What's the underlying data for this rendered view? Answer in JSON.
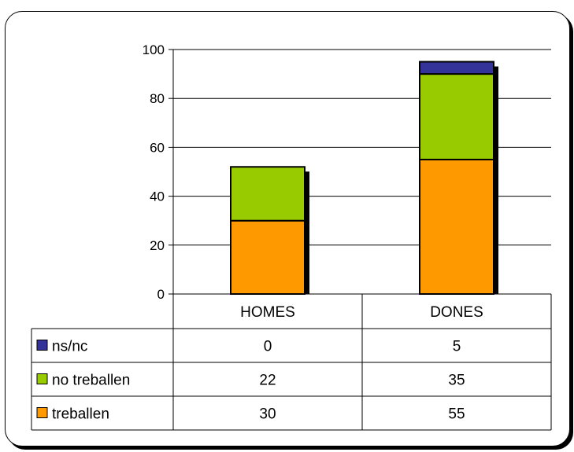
{
  "chart_data": {
    "type": "bar",
    "stacked": true,
    "categories": [
      "HOMES",
      "DONES"
    ],
    "series": [
      {
        "name": "treballen",
        "values": [
          30,
          55
        ],
        "color": "#ff9900"
      },
      {
        "name": "no treballen",
        "values": [
          22,
          35
        ],
        "color": "#99cc00"
      },
      {
        "name": "ns/nc",
        "values": [
          0,
          5
        ],
        "color": "#333399"
      }
    ],
    "ylim": [
      0,
      100
    ],
    "yticks": [
      0,
      20,
      40,
      60,
      80,
      100
    ],
    "ytick_labels": [
      "0",
      "20",
      "40",
      "60",
      "80",
      "100"
    ],
    "grid": true,
    "legend": "data-table",
    "data_table_rows": [
      {
        "label": "ns/nc",
        "values": [
          "0",
          "5"
        ],
        "color": "#333399"
      },
      {
        "label": "no treballen",
        "values": [
          "22",
          "35"
        ],
        "color": "#99cc00"
      },
      {
        "label": "treballen",
        "values": [
          "30",
          "55"
        ],
        "color": "#ff9900"
      }
    ],
    "title": "",
    "xlabel": "",
    "ylabel": ""
  }
}
